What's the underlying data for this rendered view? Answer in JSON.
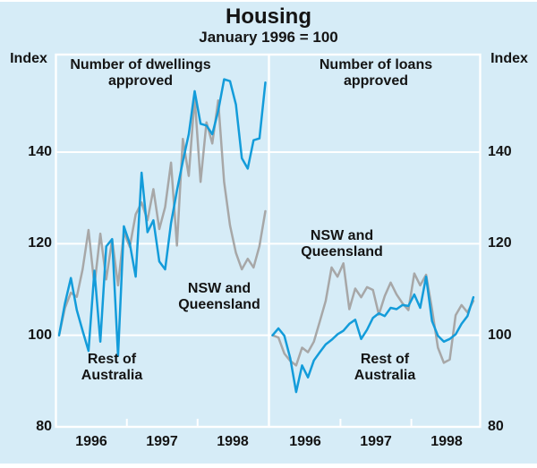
{
  "title": "Housing",
  "subtitle": "January 1996 = 100",
  "y_axis": {
    "unit_label": "Index",
    "tick_labels": [
      "140",
      "120",
      "100",
      "80"
    ],
    "tick_values": [
      140,
      120,
      100,
      80
    ],
    "gridline_values": [
      100,
      120,
      140
    ],
    "min": 80,
    "max": 161
  },
  "x_axis": {
    "years": [
      "1996",
      "1997",
      "1998"
    ]
  },
  "colors": {
    "background": "#d6ecf7",
    "grid": "#ffffff",
    "nsw_qld_line": "#a7a7a7",
    "rest_aus_line": "#139cda",
    "text": "#141414"
  },
  "chart_data": [
    {
      "type": "line",
      "panel": "left",
      "title": "Number of dwellings approved",
      "title_lines": [
        "Number of dwellings",
        "approved"
      ],
      "x_start": "1996-01",
      "x_interval": "monthly",
      "x_tick_labels": [
        "1996",
        "1997",
        "1998"
      ],
      "ylim": [
        80,
        161
      ],
      "ylabel": "Index",
      "grid": "horizontal-white",
      "series": [
        {
          "name": "NSW and Queensland",
          "label_lines": [
            "NSW and",
            "Queensland"
          ],
          "color": "#a7a7a7",
          "values": [
            100,
            106,
            109.3,
            108.4,
            114.4,
            123,
            110.9,
            122.2,
            112.2,
            120.9,
            110.9,
            122.5,
            119.3,
            126.4,
            129,
            125.1,
            131.9,
            123.2,
            128,
            137.7,
            119.6,
            142.9,
            134.8,
            152,
            133.5,
            146.5,
            141.9,
            151.3,
            133.5,
            124,
            118,
            114.4,
            116.7,
            114.8,
            119.5,
            127.1
          ]
        },
        {
          "name": "Rest of Australia",
          "label_lines": [
            "Rest of",
            "Australia"
          ],
          "color": "#139cda",
          "values": [
            100,
            107,
            112.5,
            105.5,
            101,
            96.6,
            114.1,
            98.6,
            119.4,
            121,
            95.5,
            123.8,
            120,
            112.8,
            135.5,
            122.5,
            125.1,
            116.1,
            114.4,
            124.5,
            131.6,
            138,
            143.9,
            153.3,
            146.2,
            145.8,
            143.9,
            149,
            155.9,
            155.5,
            150.4,
            138.7,
            136.4,
            142.6,
            143,
            155.2
          ]
        }
      ]
    },
    {
      "type": "line",
      "panel": "right",
      "title": "Number of loans approved",
      "title_lines": [
        "Number of loans",
        "approved"
      ],
      "x_start": "1996-01",
      "x_interval": "monthly",
      "x_tick_labels": [
        "1996",
        "1997",
        "1998"
      ],
      "ylim": [
        80,
        161
      ],
      "ylabel": "Index",
      "grid": "horizontal-white",
      "series": [
        {
          "name": "NSW and Queensland",
          "label_lines": [
            "NSW and",
            "Queensland"
          ],
          "color": "#a7a7a7",
          "values": [
            100,
            99.5,
            96,
            94.4,
            93.4,
            97.3,
            96.3,
            98.6,
            103,
            107.5,
            114.8,
            112.8,
            115.7,
            105.7,
            110.2,
            108.3,
            110.5,
            109.9,
            104.5,
            108.6,
            111.5,
            108.9,
            107,
            105.5,
            113.5,
            110.9,
            113.2,
            105.7,
            97.3,
            94,
            94.7,
            104.4,
            106.6,
            105,
            107.5
          ]
        },
        {
          "name": "Rest of Australia",
          "label_lines": [
            "Rest of",
            "Australia"
          ],
          "color": "#139cda",
          "values": [
            100,
            101.5,
            99.9,
            95,
            87.6,
            93.4,
            90.8,
            94.5,
            96.3,
            98,
            99,
            100.2,
            101,
            102.5,
            103.4,
            99.2,
            101.2,
            103.8,
            104.8,
            104.2,
            106,
            105.7,
            106.6,
            106.4,
            108.9,
            106,
            112.8,
            103.1,
            99.9,
            98.6,
            99.2,
            100.2,
            102.5,
            104.2,
            108.3
          ]
        }
      ]
    }
  ]
}
